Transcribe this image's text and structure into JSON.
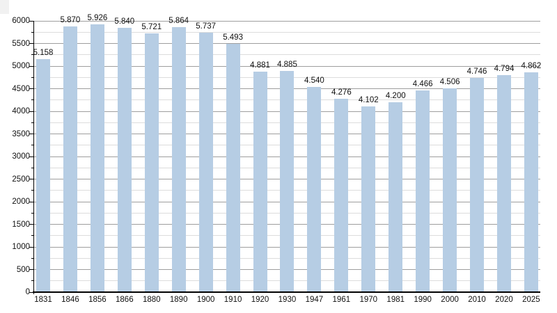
{
  "chart_data": {
    "type": "bar",
    "title": "",
    "xlabel": "",
    "ylabel": "",
    "categories": [
      "1831",
      "1846",
      "1856",
      "1866",
      "1880",
      "1890",
      "1900",
      "1910",
      "1920",
      "1930",
      "1947",
      "1961",
      "1970",
      "1981",
      "1990",
      "2000",
      "2010",
      "2020",
      "2025"
    ],
    "values": [
      5158,
      5870,
      5926,
      5840,
      5721,
      5864,
      5737,
      5493,
      4881,
      4885,
      4540,
      4276,
      4102,
      4200,
      4466,
      4506,
      4746,
      4794,
      4862
    ],
    "value_labels": [
      "5.158",
      "5.870",
      "5.926",
      "5.840",
      "5.721",
      "5.864",
      "5.737",
      "5.493",
      "4.881",
      "4.885",
      "4.540",
      "4.276",
      "4.102",
      "4.200",
      "4.466",
      "4.506",
      "4.746",
      "4.794",
      "4.862"
    ],
    "ylim": [
      0,
      6000
    ],
    "ytick_major_step": 500,
    "ytick_minor_step": 250,
    "ytick_labels": [
      "0",
      "500",
      "1000",
      "1500",
      "2000",
      "2500",
      "3000",
      "3500",
      "4000",
      "4500",
      "5000",
      "5500",
      "6000"
    ],
    "grid": true,
    "legend": "none",
    "colors": {
      "bar": "#b6cde4",
      "grid_major": "#9e9e9e",
      "grid_minor": "#dcdcdc",
      "axis": "#000000",
      "text": "#101010",
      "background": "#ffffff",
      "corner_artifact": "#f1f1f1"
    }
  }
}
